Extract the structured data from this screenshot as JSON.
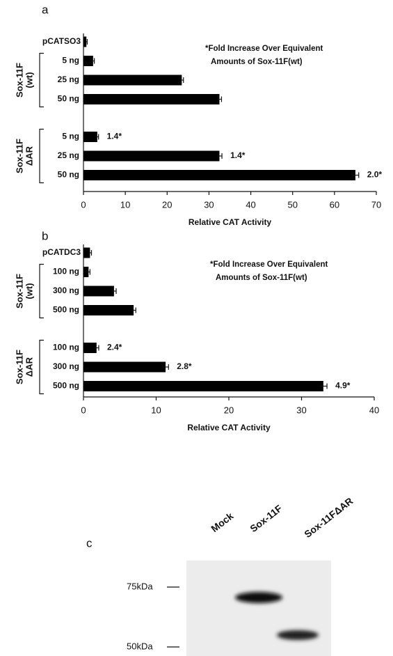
{
  "chart_data": [
    {
      "type": "bar",
      "orientation": "horizontal",
      "panel_label": "a",
      "note": [
        "*Fold Increase Over Equivalent",
        "Amounts of Sox-11F(wt)"
      ],
      "control": {
        "category": "pCATSO3",
        "value": 0.7,
        "error": 0.2
      },
      "groups": [
        {
          "label": [
            "Sox-11F",
            "(wt)"
          ],
          "categories": [
            "5 ng",
            "25 ng",
            "50 ng"
          ],
          "values": [
            2.3,
            23.5,
            32.5
          ],
          "errors": [
            0.3,
            0.4,
            0.5
          ]
        },
        {
          "label": [
            "Sox-11F",
            "ΔAR"
          ],
          "categories": [
            "5 ng",
            "25 ng",
            "50 ng"
          ],
          "values": [
            3.3,
            32.5,
            65
          ],
          "errors": [
            0.3,
            0.6,
            0.8
          ],
          "fold_labels": [
            "1.4*",
            "1.4*",
            "2.0*"
          ]
        }
      ],
      "xlabel": "Relative CAT Activity",
      "xlim": [
        0,
        70
      ],
      "xticks": [
        0,
        10,
        20,
        30,
        40,
        50,
        60,
        70
      ],
      "color": "#000000"
    },
    {
      "type": "bar",
      "orientation": "horizontal",
      "panel_label": "b",
      "note": [
        "*Fold Increase Over Equivalent",
        "Amounts of Sox-11F(wt)"
      ],
      "control": {
        "category": "pCATDC3",
        "value": 0.9,
        "error": 0.2
      },
      "groups": [
        {
          "label": [
            "Sox-11F",
            "(wt)"
          ],
          "categories": [
            "100 ng",
            "300 ng",
            "500 ng"
          ],
          "values": [
            0.7,
            4.2,
            6.9
          ],
          "errors": [
            0.2,
            0.3,
            0.3
          ]
        },
        {
          "label": [
            "Sox-11F",
            "ΔAR"
          ],
          "categories": [
            "100 ng",
            "300 ng",
            "500 ng"
          ],
          "values": [
            1.8,
            11.3,
            33
          ],
          "errors": [
            0.3,
            0.4,
            0.5
          ],
          "fold_labels": [
            "2.4*",
            "2.8*",
            "4.9*"
          ]
        }
      ],
      "xlabel": "Relative CAT Activity",
      "xlim": [
        0,
        40
      ],
      "xticks": [
        0,
        10,
        20,
        30,
        40
      ],
      "color": "#000000"
    }
  ],
  "blot": {
    "panel_label": "c",
    "lanes": [
      "Mock",
      "Sox-11F",
      "Sox-11FΔAR"
    ],
    "markers": [
      "75kDa",
      "50kDa"
    ]
  }
}
